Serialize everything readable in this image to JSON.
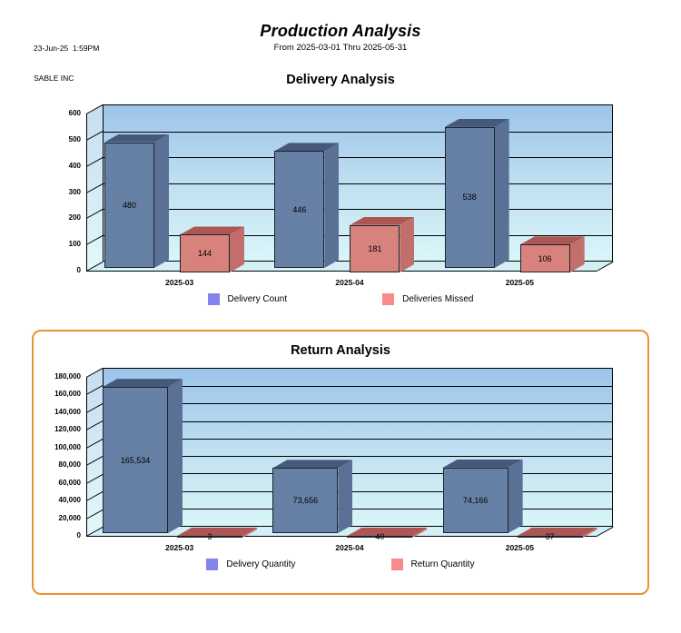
{
  "header": {
    "datetime": "23-Jun-25  1:59PM",
    "company": "SABLE INC",
    "title": "Production Analysis",
    "subtitle": "From 2025-03-01 Thru 2025-05-31"
  },
  "colors": {
    "bar_blue_front": "#6781A6",
    "bar_blue_top": "#46597A",
    "bar_blue_side": "#5A7095",
    "bar_red_front": "#D8827D",
    "bar_red_top": "#AD5755",
    "bar_red_side": "#C26F6B",
    "legend_blue": "#8383F0",
    "legend_red": "#FA8A8A",
    "wall_top": "#9CC4EA",
    "wall_mid": "#C2E2F2",
    "wall_bottom": "#D9F6F8",
    "floor": "#D2F0F6",
    "box_border": "#E9922E"
  },
  "chart_data": [
    {
      "type": "bar",
      "title": "Delivery Analysis",
      "categories": [
        "2025-03",
        "2025-04",
        "2025-05"
      ],
      "series": [
        {
          "name": "Delivery Count",
          "values": [
            480,
            446,
            538
          ]
        },
        {
          "name": "Deliveries Missed",
          "values": [
            144,
            181,
            106
          ]
        }
      ],
      "ylim": [
        0,
        600
      ],
      "ytick_step": 100,
      "grid": true,
      "legend_position": "bottom",
      "style": "3d-bars",
      "boxed": false
    },
    {
      "type": "bar",
      "title": "Return Analysis",
      "categories": [
        "2025-03",
        "2025-04",
        "2025-05"
      ],
      "series": [
        {
          "name": "Delivery Quantity",
          "values": [
            165534,
            73656,
            74166
          ]
        },
        {
          "name": "Return Quantity",
          "values": [
            3,
            40,
            37
          ]
        }
      ],
      "ylim": [
        0,
        180000
      ],
      "ytick_step": 20000,
      "grid": true,
      "legend_position": "bottom",
      "style": "3d-bars",
      "boxed": true
    }
  ]
}
